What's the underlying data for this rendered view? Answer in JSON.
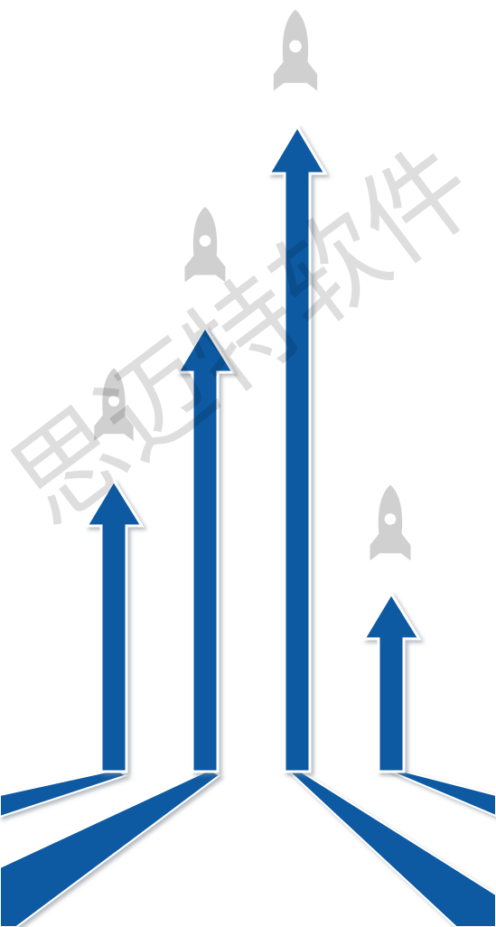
{
  "watermark": {
    "text": "思迈特软件"
  },
  "colors": {
    "arrow": "#0b5aa3",
    "arrow_shadow": "#9aa3ad",
    "arrow_outline": "#ffffff",
    "rocket": "#d0d0d0",
    "background": "#ffffff"
  },
  "arrows": [
    {
      "name": "arrow-1",
      "rocket": "rocket-icon"
    },
    {
      "name": "arrow-2",
      "rocket": "rocket-icon"
    },
    {
      "name": "arrow-3",
      "rocket": "rocket-icon"
    },
    {
      "name": "arrow-4",
      "rocket": "rocket-icon"
    }
  ]
}
